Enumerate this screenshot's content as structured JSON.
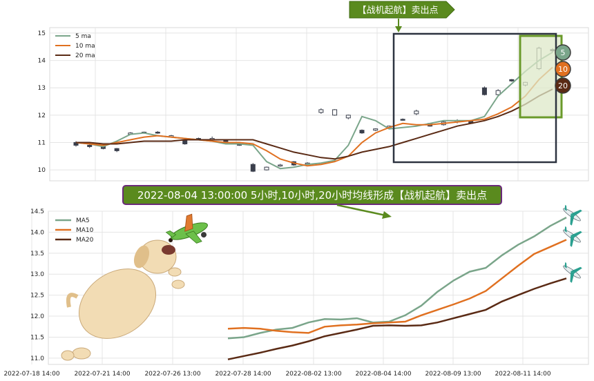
{
  "header_banner": {
    "text": "【战机起航】卖出点",
    "color": "#5a8a1e"
  },
  "annotation_banner": {
    "text": "2022-08-04 13:00:00 5小时,10小时,20小时均线形成【战机起航】卖出点",
    "color": "#5a8a1e",
    "border": "#6a2a7a"
  },
  "badges": [
    "5",
    "10",
    "20"
  ],
  "colors": {
    "ma5": "#7aa58a",
    "ma10": "#e07020",
    "ma20": "#5a2a14",
    "box": "#2d3340",
    "highlight_fill": "#dde8c8",
    "highlight_border": "#6a9a2a"
  },
  "decorations": {
    "dog": "puppy-illustration",
    "plane": "toy-airplane-icon",
    "jets": "airliner-icon"
  },
  "chart_data": [
    {
      "type": "candlestick+line",
      "title": "",
      "ylim": [
        9.6,
        15.2
      ],
      "yticks": [
        "10",
        "11",
        "12",
        "13",
        "14",
        "15"
      ],
      "series": [
        {
          "name": "5 ma",
          "values": [
            11.0,
            10.95,
            10.85,
            11.05,
            11.3,
            11.35,
            11.25,
            11.2,
            11.15,
            11.1,
            11.05,
            10.95,
            10.95,
            10.9,
            10.3,
            10.05,
            10.1,
            10.2,
            10.25,
            10.35,
            10.9,
            11.95,
            11.8,
            11.5,
            11.55,
            11.6,
            11.7,
            11.8,
            11.8,
            11.8,
            11.95,
            12.7,
            13.15,
            13.6,
            14.0,
            14.3
          ]
        },
        {
          "name": "10 ma",
          "values": [
            11.0,
            10.95,
            10.9,
            11.0,
            11.1,
            11.2,
            11.25,
            11.2,
            11.15,
            11.1,
            11.05,
            11.0,
            11.0,
            10.95,
            10.7,
            10.4,
            10.25,
            10.15,
            10.2,
            10.3,
            10.5,
            11.0,
            11.35,
            11.55,
            11.7,
            11.65,
            11.65,
            11.7,
            11.75,
            11.8,
            11.85,
            12.05,
            12.3,
            12.7,
            13.3,
            13.75
          ]
        },
        {
          "name": "20 ma",
          "values": [
            11.0,
            11.0,
            10.95,
            10.95,
            11.0,
            11.05,
            11.05,
            11.05,
            11.1,
            11.1,
            11.1,
            11.1,
            11.1,
            11.1,
            10.95,
            10.8,
            10.65,
            10.55,
            10.45,
            10.4,
            10.5,
            10.65,
            10.75,
            10.85,
            11.0,
            11.15,
            11.3,
            11.45,
            11.6,
            11.7,
            11.8,
            11.95,
            12.15,
            12.4,
            12.7,
            12.95
          ]
        }
      ],
      "candles": [
        {
          "o": 11.0,
          "c": 10.9,
          "h": 11.05,
          "l": 10.85
        },
        {
          "o": 10.9,
          "c": 10.85,
          "h": 10.95,
          "l": 10.8
        },
        {
          "o": 10.85,
          "c": 10.78,
          "h": 10.9,
          "l": 10.75
        },
        {
          "o": 10.78,
          "c": 10.7,
          "h": 10.8,
          "l": 10.65
        },
        {
          "o": 11.3,
          "c": 11.35,
          "h": 11.38,
          "l": 11.28
        },
        {
          "o": 11.35,
          "c": 11.38,
          "h": 11.4,
          "l": 11.32
        },
        {
          "o": 11.38,
          "c": 11.36,
          "h": 11.42,
          "l": 11.32
        },
        {
          "o": 11.2,
          "c": 11.25,
          "h": 11.28,
          "l": 11.18
        },
        {
          "o": 11.1,
          "c": 10.95,
          "h": 11.12,
          "l": 10.92
        },
        {
          "o": 11.15,
          "c": 11.12,
          "h": 11.18,
          "l": 11.1
        },
        {
          "o": 11.1,
          "c": 11.15,
          "h": 11.22,
          "l": 11.08
        },
        {
          "o": 11.1,
          "c": 11.0,
          "h": 11.12,
          "l": 10.98
        },
        {
          "o": 10.95,
          "c": 10.9,
          "h": 10.98,
          "l": 10.88
        },
        {
          "o": 10.2,
          "c": 9.95,
          "h": 10.25,
          "l": 9.92
        },
        {
          "o": 10.0,
          "c": 10.1,
          "h": 10.12,
          "l": 9.98
        },
        {
          "o": 10.15,
          "c": 10.18,
          "h": 10.22,
          "l": 10.12
        },
        {
          "o": 10.3,
          "c": 10.18,
          "h": 10.32,
          "l": 10.15
        },
        {
          "o": 10.25,
          "c": 10.25,
          "h": 10.28,
          "l": 10.22
        },
        {
          "o": 12.1,
          "c": 12.2,
          "h": 12.25,
          "l": 12.05
        },
        {
          "o": 12.0,
          "c": 12.2,
          "h": 12.22,
          "l": 11.98
        },
        {
          "o": 11.9,
          "c": 12.0,
          "h": 12.02,
          "l": 11.85
        },
        {
          "o": 11.45,
          "c": 11.35,
          "h": 11.48,
          "l": 11.32
        },
        {
          "o": 11.45,
          "c": 11.5,
          "h": 11.52,
          "l": 11.42
        },
        {
          "o": 11.55,
          "c": 11.6,
          "h": 11.62,
          "l": 11.52
        },
        {
          "o": 11.85,
          "c": 11.82,
          "h": 11.88,
          "l": 11.8
        },
        {
          "o": 12.05,
          "c": 12.15,
          "h": 12.2,
          "l": 12.0
        },
        {
          "o": 11.7,
          "c": 11.6,
          "h": 11.72,
          "l": 11.58
        },
        {
          "o": 11.65,
          "c": 11.75,
          "h": 11.8,
          "l": 11.62
        },
        {
          "o": 11.75,
          "c": 11.8,
          "h": 11.85,
          "l": 11.7
        },
        {
          "o": 11.8,
          "c": 11.7,
          "h": 11.82,
          "l": 11.68
        },
        {
          "o": 13.0,
          "c": 12.75,
          "h": 13.05,
          "l": 12.72
        },
        {
          "o": 12.75,
          "c": 12.9,
          "h": 12.95,
          "l": 12.72
        },
        {
          "o": 13.3,
          "c": 13.25,
          "h": 13.32,
          "l": 13.22
        },
        {
          "o": 13.1,
          "c": 13.2,
          "h": 13.22,
          "l": 13.05
        },
        {
          "o": 13.7,
          "c": 14.45,
          "h": 14.5,
          "l": 13.65
        },
        {
          "o": 14.4,
          "c": 14.35,
          "h": 14.45,
          "l": 14.3
        }
      ]
    },
    {
      "type": "line",
      "title": "",
      "ylim": [
        10.85,
        14.5
      ],
      "yticks": [
        "11.0",
        "11.5",
        "12.0",
        "12.5",
        "13.0",
        "13.5",
        "14.0",
        "14.5"
      ],
      "xticks": [
        "2022-07-18 14:00",
        "2022-07-21 14:00",
        "2022-07-26 13:00",
        "2022-07-28 14:00",
        "2022-08-02 13:00",
        "2022-08-04 14:00",
        "2022-08-09 13:00",
        "2022-08-11 14:00"
      ],
      "series": [
        {
          "name": "MA5",
          "values": [
            11.47,
            11.5,
            11.6,
            11.68,
            11.72,
            11.85,
            11.93,
            11.92,
            11.95,
            11.85,
            11.87,
            12.02,
            12.25,
            12.58,
            12.85,
            13.06,
            13.15,
            13.45,
            13.7,
            13.9,
            14.15,
            14.35
          ]
        },
        {
          "name": "MA10",
          "values": [
            11.7,
            11.72,
            11.7,
            11.65,
            11.62,
            11.6,
            11.75,
            11.78,
            11.8,
            11.83,
            11.85,
            11.87,
            12.02,
            12.15,
            12.28,
            12.42,
            12.6,
            12.9,
            13.2,
            13.48,
            13.65,
            13.82
          ]
        },
        {
          "name": "MA20",
          "values": [
            10.97,
            11.05,
            11.13,
            11.22,
            11.3,
            11.4,
            11.52,
            11.6,
            11.68,
            11.77,
            11.78,
            11.77,
            11.78,
            11.85,
            11.95,
            12.05,
            12.15,
            12.35,
            12.5,
            12.65,
            12.78,
            12.9
          ]
        }
      ]
    }
  ]
}
